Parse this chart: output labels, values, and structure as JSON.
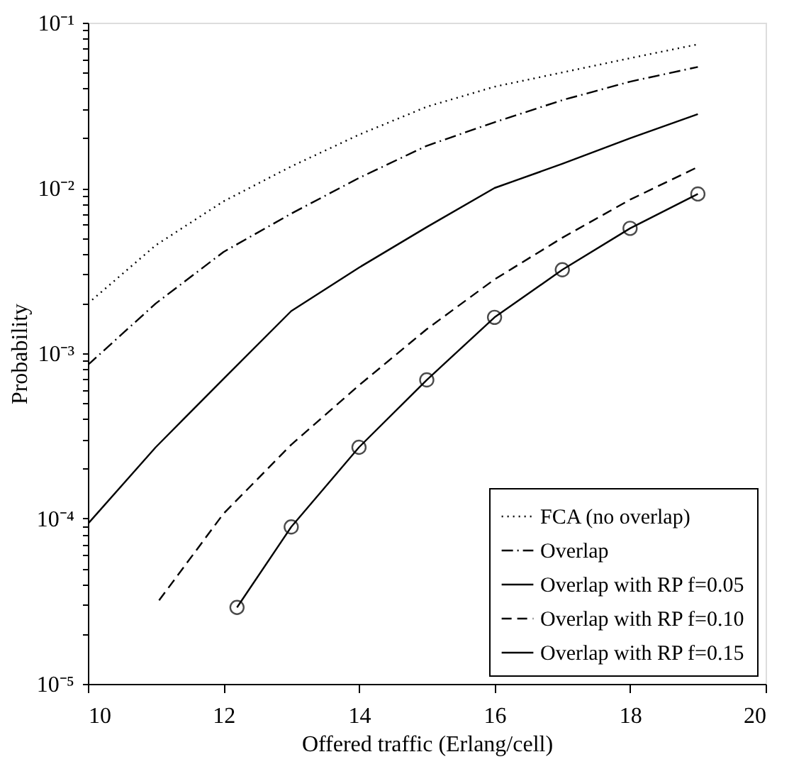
{
  "chart_data": {
    "type": "line",
    "xlabel": "Offered traffic (Erlang/cell)",
    "ylabel": "Probability",
    "log": "y",
    "xlim": [
      10,
      20
    ],
    "xticks": [
      10,
      12,
      14,
      16,
      18,
      20
    ],
    "ylim": [
      1e-05,
      0.1
    ],
    "yticks": [
      {
        "value": 1e-05,
        "label": "10⁻⁵"
      },
      {
        "value": 2e-05,
        "label": null
      },
      {
        "value": 3e-05,
        "label": null
      },
      {
        "value": 4e-05,
        "label": null
      },
      {
        "value": 5e-05,
        "label": null
      },
      {
        "value": 6e-05,
        "label": null
      },
      {
        "value": 7e-05,
        "label": null
      },
      {
        "value": 8e-05,
        "label": null
      },
      {
        "value": 9e-05,
        "label": null
      },
      {
        "value": 0.0001,
        "label": "10⁻⁴"
      },
      {
        "value": 0.0002,
        "label": null
      },
      {
        "value": 0.0003,
        "label": null
      },
      {
        "value": 0.0004,
        "label": null
      },
      {
        "value": 0.0005,
        "label": null
      },
      {
        "value": 0.0006,
        "label": null
      },
      {
        "value": 0.0007,
        "label": null
      },
      {
        "value": 0.0008,
        "label": null
      },
      {
        "value": 0.0009,
        "label": null
      },
      {
        "value": 0.001,
        "label": "10⁻³"
      },
      {
        "value": 0.002,
        "label": null
      },
      {
        "value": 0.003,
        "label": null
      },
      {
        "value": 0.004,
        "label": null
      },
      {
        "value": 0.005,
        "label": null
      },
      {
        "value": 0.006,
        "label": null
      },
      {
        "value": 0.007,
        "label": null
      },
      {
        "value": 0.008,
        "label": null
      },
      {
        "value": 0.009,
        "label": null
      },
      {
        "value": 0.01,
        "label": "10⁻²"
      },
      {
        "value": 0.02,
        "label": null
      },
      {
        "value": 0.03,
        "label": null
      },
      {
        "value": 0.04,
        "label": null
      },
      {
        "value": 0.05,
        "label": null
      },
      {
        "value": 0.06,
        "label": null
      },
      {
        "value": 0.07,
        "label": null
      },
      {
        "value": 0.08,
        "label": null
      },
      {
        "value": 0.09,
        "label": null
      },
      {
        "value": 0.1,
        "label": "10⁻¹"
      }
    ],
    "grid": false,
    "legend": "bottom right",
    "series": [
      {
        "name": "FCA (no overlap)",
        "color": "#000000",
        "line_style": "dotted",
        "marker": "none",
        "x": [
          10,
          11,
          12,
          13,
          14,
          15,
          16,
          17,
          18,
          19
        ],
        "values": [
          0.002,
          0.0045,
          0.0083,
          0.0135,
          0.021,
          0.031,
          0.041,
          0.05,
          0.061,
          0.074
        ]
      },
      {
        "name": "Overlap",
        "color": "#000000",
        "line_style": "dashdot",
        "marker": "none",
        "x": [
          10,
          11,
          12,
          13,
          14,
          15,
          16,
          17,
          18,
          19
        ],
        "values": [
          0.00085,
          0.002,
          0.0041,
          0.007,
          0.0115,
          0.018,
          0.025,
          0.034,
          0.044,
          0.054
        ]
      },
      {
        "name": "Overlap with RP f=0.05",
        "color": "#000000",
        "line_style": "solid",
        "marker": "none",
        "x": [
          10,
          11,
          12,
          13,
          14,
          15,
          16,
          17,
          18,
          19
        ],
        "values": [
          9.3e-05,
          0.00027,
          0.0007,
          0.0018,
          0.0033,
          0.0058,
          0.01,
          0.014,
          0.02,
          0.028
        ]
      },
      {
        "name": "Overlap with RP f=0.10",
        "color": "#000000",
        "line_style": "dashed",
        "marker": "none",
        "x": [
          11.05,
          12,
          13,
          14,
          15,
          16,
          17,
          18,
          19
        ],
        "values": [
          3.2e-05,
          0.000107,
          0.00028,
          0.00064,
          0.0014,
          0.0028,
          0.005,
          0.0085,
          0.0134
        ]
      },
      {
        "name": "Overlap with RP f=0.15",
        "color": "#000000",
        "line_style": "solid",
        "marker": "circle",
        "x": [
          12.2,
          13,
          14,
          15,
          16,
          17,
          18,
          19
        ],
        "values": [
          2.9e-05,
          8.9e-05,
          0.00027,
          0.00069,
          0.00165,
          0.0032,
          0.0057,
          0.0092
        ]
      }
    ]
  }
}
